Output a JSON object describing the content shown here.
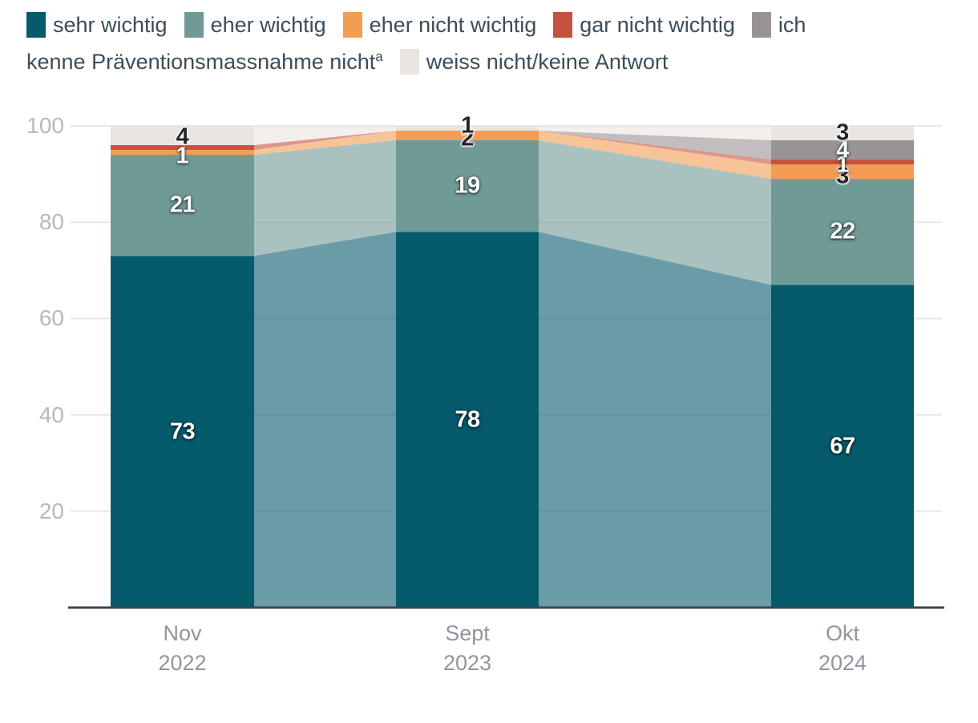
{
  "legend": {
    "row1": [
      {
        "color": "#055a6c",
        "text": "sehr wichtig"
      },
      {
        "color": "#6f9a96",
        "text": "eher wichtig"
      },
      {
        "color": "#f29d53",
        "text": "eher nicht wichtig"
      },
      {
        "color": "#c5523f",
        "text": "gar nicht wichtig"
      },
      {
        "color": "#9a9396",
        "text": "ich"
      }
    ],
    "row2": [
      {
        "text": "kenne Präventionsmassnahme nicht",
        "sup": "a"
      },
      {
        "color": "#e9e5e0",
        "text": "weiss nicht/keine Antwort"
      }
    ]
  },
  "chart_data": {
    "type": "area",
    "subtype": "stacked-bar-with-flow-bands",
    "categories": [
      "Nov 2022",
      "Sept 2023",
      "Okt 2024"
    ],
    "series": [
      {
        "name": "sehr wichtig",
        "values": [
          73,
          78,
          67
        ],
        "color": "#055a6c"
      },
      {
        "name": "eher wichtig",
        "values": [
          21,
          19,
          22
        ],
        "color": "#6f9a96"
      },
      {
        "name": "eher nicht wichtig",
        "values": [
          1,
          2,
          3
        ],
        "color": "#f29d53"
      },
      {
        "name": "gar nicht wichtig",
        "values": [
          1,
          0,
          1
        ],
        "color": "#c5523f"
      },
      {
        "name": "ich kenne Präventionsmassnahme nicht",
        "values": [
          0,
          0,
          4
        ],
        "color": "#9a9396"
      },
      {
        "name": "weiss nicht/keine Antwort",
        "values": [
          4,
          1,
          3
        ],
        "color": "#e9e5e0"
      }
    ],
    "ylim": [
      0,
      100
    ],
    "yticks": [
      20,
      40,
      60,
      80,
      100
    ],
    "grid": true,
    "legend_position": "top",
    "band_opacity": 0.6,
    "gridline_color": "#e8e8e8",
    "baseline_color": "#3a4750",
    "value_labels": [
      {
        "col": 0,
        "text": "73",
        "at": 36.5,
        "style": "light"
      },
      {
        "col": 0,
        "text": "21",
        "at": 83.5,
        "style": "light"
      },
      {
        "col": 0,
        "text": "1",
        "at": 93.7,
        "style": "light"
      },
      {
        "col": 0,
        "text": "4",
        "at": 97.7,
        "style": "dark"
      },
      {
        "col": 1,
        "text": "78",
        "at": 39.0,
        "style": "light"
      },
      {
        "col": 1,
        "text": "19",
        "at": 87.5,
        "style": "light"
      },
      {
        "col": 1,
        "text": "2",
        "at": 97.4,
        "style": "dark"
      },
      {
        "col": 1,
        "text": "1",
        "at": 100.0,
        "style": "dark"
      },
      {
        "col": 2,
        "text": "67",
        "at": 33.5,
        "style": "light"
      },
      {
        "col": 2,
        "text": "22",
        "at": 78.0,
        "style": "light"
      },
      {
        "col": 2,
        "text": "3",
        "at": 89.6,
        "style": "dark"
      },
      {
        "col": 2,
        "text": "1",
        "at": 91.9,
        "style": "light"
      },
      {
        "col": 2,
        "text": "4",
        "at": 94.9,
        "style": "light"
      },
      {
        "col": 2,
        "text": "3",
        "at": 98.5,
        "style": "dark"
      }
    ]
  }
}
